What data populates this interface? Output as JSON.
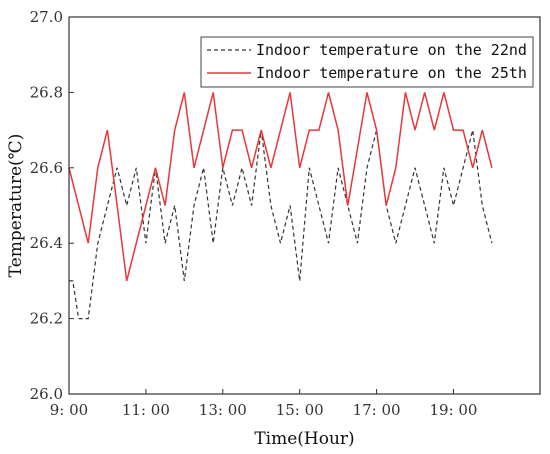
{
  "chart_data": {
    "type": "line",
    "xlabel": "Time(Hour)",
    "ylabel": "Temperature(℃)",
    "ylim": [
      26.0,
      27.0
    ],
    "xlim": [
      9.0,
      21.25
    ],
    "y_ticks": [
      "26.0",
      "26.2",
      "26.4",
      "26.6",
      "26.8",
      "27.0"
    ],
    "x_ticks": [
      {
        "value": 9,
        "label": "9: 00"
      },
      {
        "value": 11,
        "label": "11: 00"
      },
      {
        "value": 13,
        "label": "13: 00"
      },
      {
        "value": 15,
        "label": "15: 00"
      },
      {
        "value": 17,
        "label": "17: 00"
      },
      {
        "value": 19,
        "label": "19: 00"
      }
    ],
    "grid": false,
    "legend_position": "top-right",
    "series": [
      {
        "name": "Indoor temperature on the 22nd",
        "color": "#333333",
        "style": "dashed",
        "points": [
          [
            9.0,
            26.3
          ],
          [
            9.1,
            26.3
          ],
          [
            9.25,
            26.2
          ],
          [
            9.5,
            26.2
          ],
          [
            9.75,
            26.4
          ],
          [
            10.0,
            26.5
          ],
          [
            10.25,
            26.6
          ],
          [
            10.5,
            26.5
          ],
          [
            10.75,
            26.6
          ],
          [
            11.0,
            26.4
          ],
          [
            11.25,
            26.6
          ],
          [
            11.5,
            26.4
          ],
          [
            11.75,
            26.5
          ],
          [
            12.0,
            26.3
          ],
          [
            12.25,
            26.5
          ],
          [
            12.5,
            26.6
          ],
          [
            12.75,
            26.4
          ],
          [
            13.0,
            26.6
          ],
          [
            13.25,
            26.5
          ],
          [
            13.5,
            26.6
          ],
          [
            13.75,
            26.5
          ],
          [
            14.0,
            26.7
          ],
          [
            14.25,
            26.5
          ],
          [
            14.5,
            26.4
          ],
          [
            14.75,
            26.5
          ],
          [
            15.0,
            26.3
          ],
          [
            15.25,
            26.6
          ],
          [
            15.5,
            26.5
          ],
          [
            15.75,
            26.4
          ],
          [
            16.0,
            26.6
          ],
          [
            16.25,
            26.5
          ],
          [
            16.5,
            26.4
          ],
          [
            16.75,
            26.6
          ],
          [
            17.0,
            26.7
          ],
          [
            17.25,
            26.5
          ],
          [
            17.5,
            26.4
          ],
          [
            17.75,
            26.5
          ],
          [
            18.0,
            26.6
          ],
          [
            18.25,
            26.5
          ],
          [
            18.5,
            26.4
          ],
          [
            18.75,
            26.6
          ],
          [
            19.0,
            26.5
          ],
          [
            19.25,
            26.6
          ],
          [
            19.5,
            26.7
          ],
          [
            19.75,
            26.5
          ],
          [
            20.0,
            26.4
          ]
        ]
      },
      {
        "name": "Indoor temperature on the 25th",
        "color": "#e8373a",
        "style": "solid",
        "points": [
          [
            9.0,
            26.6
          ],
          [
            9.5,
            26.4
          ],
          [
            9.75,
            26.6
          ],
          [
            10.0,
            26.7
          ],
          [
            10.25,
            26.5
          ],
          [
            10.5,
            26.3
          ],
          [
            11.25,
            26.6
          ],
          [
            11.5,
            26.5
          ],
          [
            11.75,
            26.7
          ],
          [
            12.0,
            26.8
          ],
          [
            12.25,
            26.6
          ],
          [
            12.75,
            26.8
          ],
          [
            13.0,
            26.6
          ],
          [
            13.25,
            26.7
          ],
          [
            13.5,
            26.7
          ],
          [
            13.75,
            26.6
          ],
          [
            14.0,
            26.7
          ],
          [
            14.25,
            26.6
          ],
          [
            14.75,
            26.8
          ],
          [
            15.0,
            26.6
          ],
          [
            15.25,
            26.7
          ],
          [
            15.5,
            26.7
          ],
          [
            15.75,
            26.8
          ],
          [
            16.0,
            26.7
          ],
          [
            16.25,
            26.5
          ],
          [
            16.75,
            26.8
          ],
          [
            17.0,
            26.7
          ],
          [
            17.25,
            26.5
          ],
          [
            17.5,
            26.6
          ],
          [
            17.75,
            26.8
          ],
          [
            18.0,
            26.7
          ],
          [
            18.25,
            26.8
          ],
          [
            18.5,
            26.7
          ],
          [
            18.75,
            26.8
          ],
          [
            19.0,
            26.7
          ],
          [
            19.25,
            26.7
          ],
          [
            19.5,
            26.6
          ],
          [
            19.75,
            26.7
          ],
          [
            20.0,
            26.6
          ]
        ]
      }
    ]
  }
}
